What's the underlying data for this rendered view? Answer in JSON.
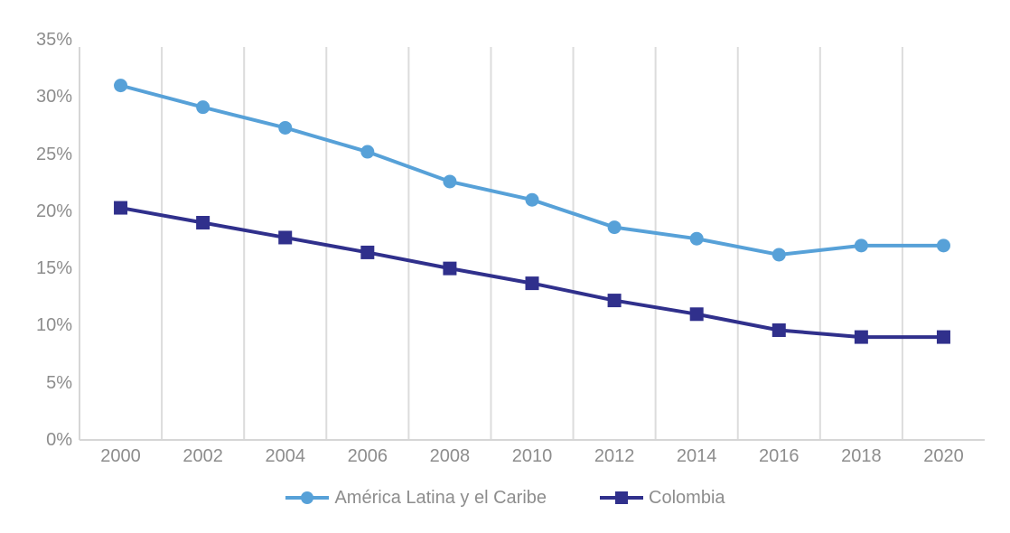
{
  "chart_data": {
    "type": "line",
    "x": [
      "2000",
      "2002",
      "2004",
      "2006",
      "2008",
      "2010",
      "2012",
      "2014",
      "2016",
      "2018",
      "2020"
    ],
    "series": [
      {
        "name": "América Latina y el Caribe",
        "marker": "circle",
        "color": "#57A1D8",
        "values": [
          31.0,
          29.1,
          27.3,
          25.2,
          22.6,
          21.0,
          18.6,
          17.6,
          16.2,
          17.0,
          17.0
        ]
      },
      {
        "name": "Colombia",
        "marker": "square",
        "color": "#30308C",
        "values": [
          20.3,
          19.0,
          17.7,
          16.4,
          15.0,
          13.7,
          12.2,
          11.0,
          9.6,
          9.0,
          9.0
        ]
      }
    ],
    "title": "",
    "xlabel": "",
    "ylabel": "",
    "ylim": [
      0,
      35
    ],
    "ytick_values": [
      0,
      5,
      10,
      15,
      20,
      25,
      30,
      35
    ],
    "ytick_labels": [
      "0%",
      "5%",
      "10%",
      "15%",
      "20%",
      "25%",
      "30%",
      "35%"
    ],
    "grid": "vertical-only",
    "legend_position": "bottom-center",
    "colors": {
      "gridline": "#DCDCDC",
      "axis_line": "#D6D6D6",
      "tick_label": "#8D8D8D",
      "legend_text": "#8D8D8D",
      "background": "#FFFFFF"
    }
  }
}
